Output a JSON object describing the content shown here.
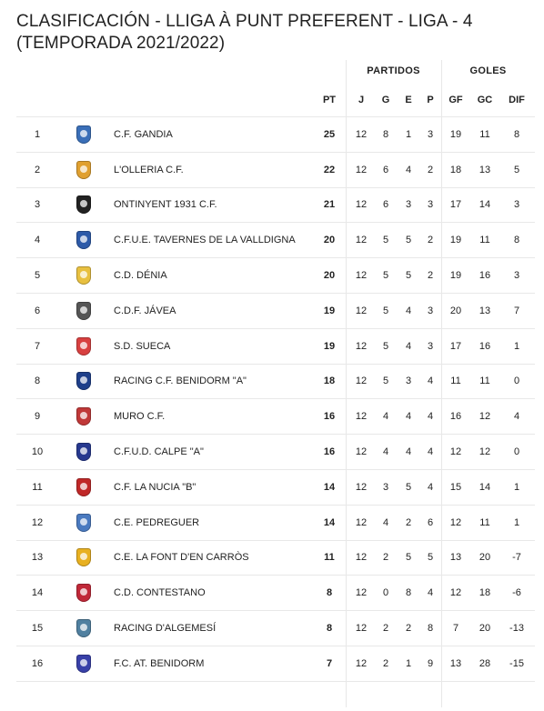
{
  "page": {
    "title": "CLASIFICACIÓN - LLIGA À PUNT PREFERENT - LIGA - 4 (TEMPORADA 2021/2022)"
  },
  "header": {
    "group_partidos": "PARTIDOS",
    "group_goles": "GOLES",
    "pt": "PT",
    "j": "J",
    "g": "G",
    "e": "E",
    "p": "P",
    "gf": "GF",
    "gc": "GC",
    "dif": "DIF"
  },
  "rows": [
    {
      "pos": "1",
      "name": "C.F. GANDIA",
      "pt": "25",
      "j": "12",
      "g": "8",
      "e": "1",
      "p": "3",
      "gf": "19",
      "gc": "11",
      "dif": "8",
      "crest_color": "#3a6fb8",
      "crest_icon": "club-crest-icon"
    },
    {
      "pos": "2",
      "name": "L'OLLERIA C.F.",
      "pt": "22",
      "j": "12",
      "g": "6",
      "e": "4",
      "p": "2",
      "gf": "18",
      "gc": "13",
      "dif": "5",
      "crest_color": "#e0a030",
      "crest_icon": "club-crest-icon"
    },
    {
      "pos": "3",
      "name": "ONTINYENT 1931 C.F.",
      "pt": "21",
      "j": "12",
      "g": "6",
      "e": "3",
      "p": "3",
      "gf": "17",
      "gc": "14",
      "dif": "3",
      "crest_color": "#222222",
      "crest_icon": "club-crest-icon"
    },
    {
      "pos": "4",
      "name": "C.F.U.E. TAVERNES DE LA VALLDIGNA",
      "pt": "20",
      "j": "12",
      "g": "5",
      "e": "5",
      "p": "2",
      "gf": "19",
      "gc": "11",
      "dif": "8",
      "crest_color": "#2d5aa8",
      "crest_icon": "club-crest-icon"
    },
    {
      "pos": "5",
      "name": "C.D. DÉNIA",
      "pt": "20",
      "j": "12",
      "g": "5",
      "e": "5",
      "p": "2",
      "gf": "19",
      "gc": "16",
      "dif": "3",
      "crest_color": "#e8c040",
      "crest_icon": "club-crest-icon"
    },
    {
      "pos": "6",
      "name": "C.D.F. JÁVEA",
      "pt": "19",
      "j": "12",
      "g": "5",
      "e": "4",
      "p": "3",
      "gf": "20",
      "gc": "13",
      "dif": "7",
      "crest_color": "#555555",
      "crest_icon": "club-crest-icon"
    },
    {
      "pos": "7",
      "name": "S.D. SUECA",
      "pt": "19",
      "j": "12",
      "g": "5",
      "e": "4",
      "p": "3",
      "gf": "17",
      "gc": "16",
      "dif": "1",
      "crest_color": "#d84040",
      "crest_icon": "club-crest-icon"
    },
    {
      "pos": "8",
      "name": "RACING C.F. BENIDORM \"A\"",
      "pt": "18",
      "j": "12",
      "g": "5",
      "e": "3",
      "p": "4",
      "gf": "11",
      "gc": "11",
      "dif": "0",
      "crest_color": "#1e3f8a",
      "crest_icon": "club-crest-icon"
    },
    {
      "pos": "9",
      "name": "MURO C.F.",
      "pt": "16",
      "j": "12",
      "g": "4",
      "e": "4",
      "p": "4",
      "gf": "16",
      "gc": "12",
      "dif": "4",
      "crest_color": "#c03838",
      "crest_icon": "club-crest-icon"
    },
    {
      "pos": "10",
      "name": "C.F.U.D. CALPE \"A\"",
      "pt": "16",
      "j": "12",
      "g": "4",
      "e": "4",
      "p": "4",
      "gf": "12",
      "gc": "12",
      "dif": "0",
      "crest_color": "#26388f",
      "crest_icon": "club-crest-icon"
    },
    {
      "pos": "11",
      "name": "C.F. LA NUCIA \"B\"",
      "pt": "14",
      "j": "12",
      "g": "3",
      "e": "5",
      "p": "4",
      "gf": "15",
      "gc": "14",
      "dif": "1",
      "crest_color": "#c02828",
      "crest_icon": "club-crest-icon"
    },
    {
      "pos": "12",
      "name": "C.E. PEDREGUER",
      "pt": "14",
      "j": "12",
      "g": "4",
      "e": "2",
      "p": "6",
      "gf": "12",
      "gc": "11",
      "dif": "1",
      "crest_color": "#4a7ac0",
      "crest_icon": "club-crest-icon"
    },
    {
      "pos": "13",
      "name": "C.E. LA FONT D'EN CARRÒS",
      "pt": "11",
      "j": "12",
      "g": "2",
      "e": "5",
      "p": "5",
      "gf": "13",
      "gc": "20",
      "dif": "-7",
      "crest_color": "#e8b020",
      "crest_icon": "club-crest-icon"
    },
    {
      "pos": "14",
      "name": "C.D. CONTESTANO",
      "pt": "8",
      "j": "12",
      "g": "0",
      "e": "8",
      "p": "4",
      "gf": "12",
      "gc": "18",
      "dif": "-6",
      "crest_color": "#c02838",
      "crest_icon": "club-crest-icon"
    },
    {
      "pos": "15",
      "name": "RACING D'ALGEMESÍ",
      "pt": "8",
      "j": "12",
      "g": "2",
      "e": "2",
      "p": "8",
      "gf": "7",
      "gc": "20",
      "dif": "-13",
      "crest_color": "#5080a0",
      "crest_icon": "club-crest-icon"
    },
    {
      "pos": "16",
      "name": "F.C. AT. BENIDORM",
      "pt": "7",
      "j": "12",
      "g": "2",
      "e": "1",
      "p": "9",
      "gf": "13",
      "gc": "28",
      "dif": "-15",
      "crest_color": "#3840a8",
      "crest_icon": "club-crest-icon"
    }
  ]
}
